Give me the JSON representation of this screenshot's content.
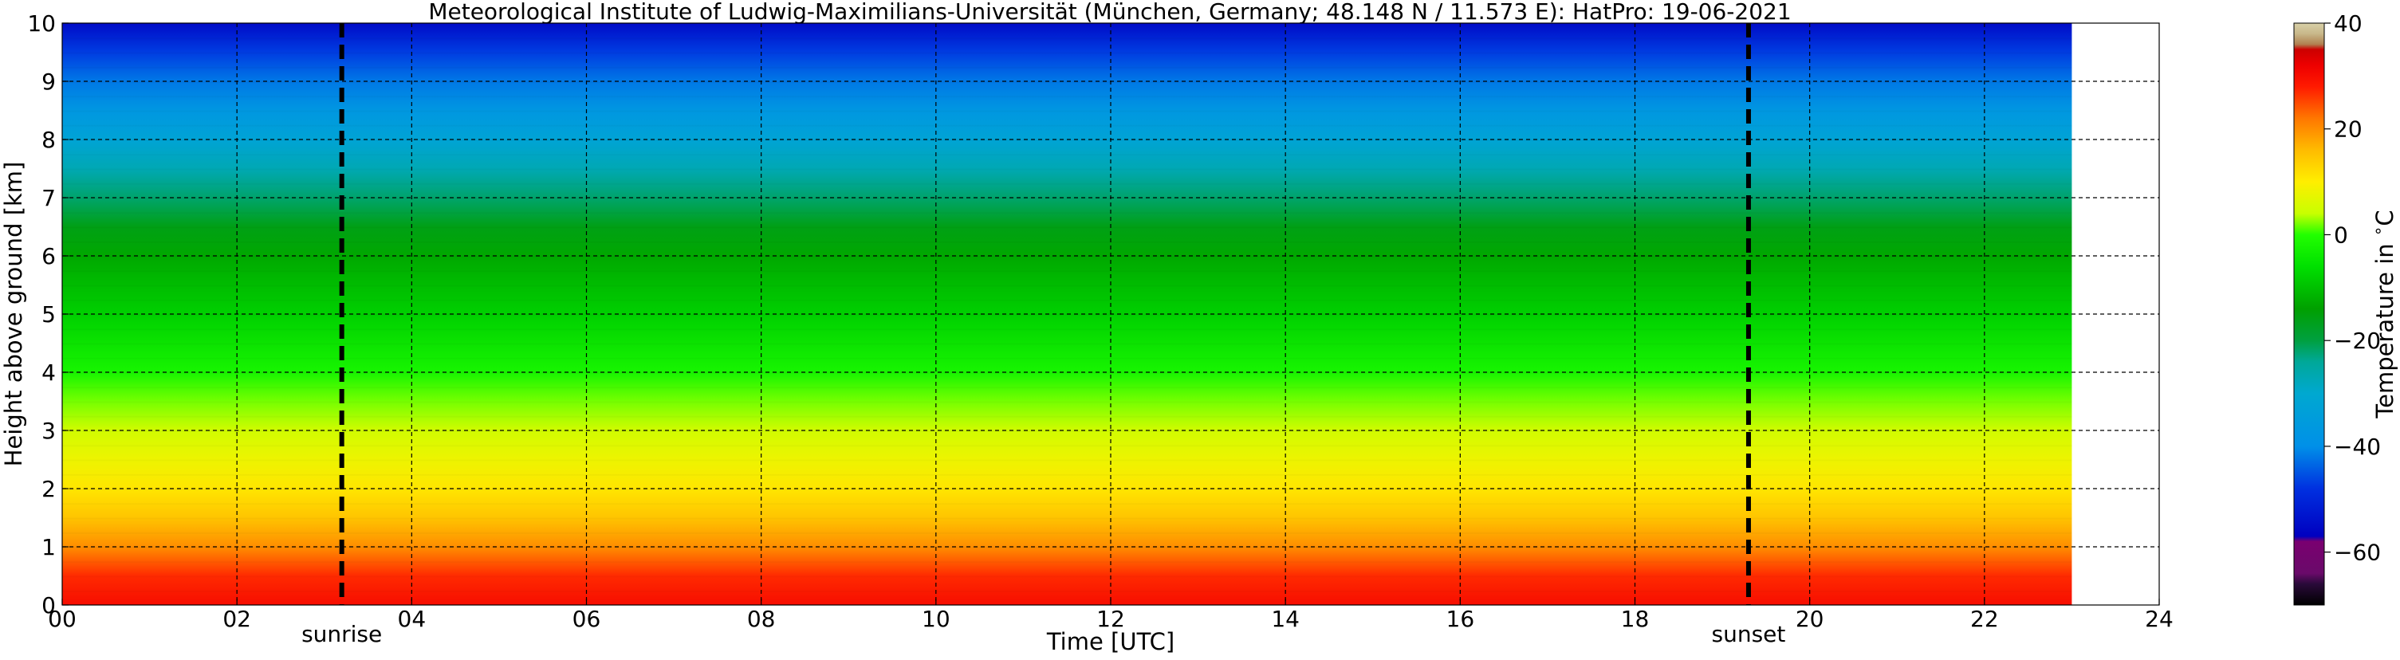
{
  "chart_data": {
    "type": "heatmap",
    "title": "Meteorological Institute of Ludwig-Maximilians-Universität (München, Germany; 48.148 N / 11.573 E):    HatPro: 19-06-2021",
    "xlabel": "Time [UTC]",
    "ylabel": "Height above ground [km]",
    "xlim": [
      0,
      24
    ],
    "ylim": [
      0,
      10
    ],
    "x_ticks": [
      0,
      2,
      4,
      6,
      8,
      10,
      12,
      14,
      16,
      18,
      20,
      22,
      24
    ],
    "x_tick_labels": [
      "00",
      "02",
      "04",
      "06",
      "08",
      "10",
      "12",
      "14",
      "16",
      "18",
      "20",
      "22",
      "24"
    ],
    "y_ticks": [
      0,
      1,
      2,
      3,
      4,
      5,
      6,
      7,
      8,
      9,
      10
    ],
    "y_tick_labels": [
      "0",
      "1",
      "2",
      "3",
      "4",
      "5",
      "6",
      "7",
      "8",
      "9",
      "10"
    ],
    "grid": true,
    "data_x_range": [
      0,
      23
    ],
    "colorbar": {
      "label": "Temperature in $^\\circ$C",
      "range": [
        -70,
        40
      ],
      "ticks": [
        40,
        20,
        0,
        -20,
        -40,
        -60
      ],
      "tick_labels": [
        "40",
        "20",
        "0",
        "−20",
        "−40",
        "−60"
      ],
      "stops": [
        {
          "value": -70,
          "color": "#000000"
        },
        {
          "value": -66,
          "color": "#2a0a3a"
        },
        {
          "value": -64,
          "color": "#6a0a6a"
        },
        {
          "value": -58,
          "color": "#7a0070"
        },
        {
          "value": -57,
          "color": "#0000c0"
        },
        {
          "value": -48,
          "color": "#0030e0"
        },
        {
          "value": -40,
          "color": "#0090e8"
        },
        {
          "value": -30,
          "color": "#00a8d0"
        },
        {
          "value": -24,
          "color": "#00a898"
        },
        {
          "value": -20,
          "color": "#00a040"
        },
        {
          "value": -14,
          "color": "#00a000"
        },
        {
          "value": -6,
          "color": "#00e000"
        },
        {
          "value": 0,
          "color": "#22ff00"
        },
        {
          "value": 4,
          "color": "#c8ff00"
        },
        {
          "value": 10,
          "color": "#ffee00"
        },
        {
          "value": 16,
          "color": "#ffbb00"
        },
        {
          "value": 22,
          "color": "#ff7700"
        },
        {
          "value": 28,
          "color": "#ff1a00"
        },
        {
          "value": 32,
          "color": "#ee0000"
        },
        {
          "value": 35,
          "color": "#cc0000"
        },
        {
          "value": 36,
          "color": "#b08050"
        },
        {
          "value": 38,
          "color": "#c8b88a"
        },
        {
          "value": 40,
          "color": "#d8d0a8"
        }
      ]
    },
    "temperature_profile": [
      {
        "height_km": 0.0,
        "temp_c": 30
      },
      {
        "height_km": 0.5,
        "temp_c": 27
      },
      {
        "height_km": 1.0,
        "temp_c": 20
      },
      {
        "height_km": 1.5,
        "temp_c": 15
      },
      {
        "height_km": 2.0,
        "temp_c": 11
      },
      {
        "height_km": 2.5,
        "temp_c": 8
      },
      {
        "height_km": 3.0,
        "temp_c": 5
      },
      {
        "height_km": 3.5,
        "temp_c": 2
      },
      {
        "height_km": 4.0,
        "temp_c": -2
      },
      {
        "height_km": 5.0,
        "temp_c": -8
      },
      {
        "height_km": 6.0,
        "temp_c": -13
      },
      {
        "height_km": 6.5,
        "temp_c": -16
      },
      {
        "height_km": 7.0,
        "temp_c": -22
      },
      {
        "height_km": 7.5,
        "temp_c": -27
      },
      {
        "height_km": 8.0,
        "temp_c": -32
      },
      {
        "height_km": 8.5,
        "temp_c": -37
      },
      {
        "height_km": 9.0,
        "temp_c": -42
      },
      {
        "height_km": 9.5,
        "temp_c": -47
      },
      {
        "height_km": 10.0,
        "temp_c": -55
      }
    ],
    "annotations": [
      {
        "label": "sunrise",
        "x": 3.2
      },
      {
        "label": "sunset",
        "x": 19.3
      }
    ]
  }
}
